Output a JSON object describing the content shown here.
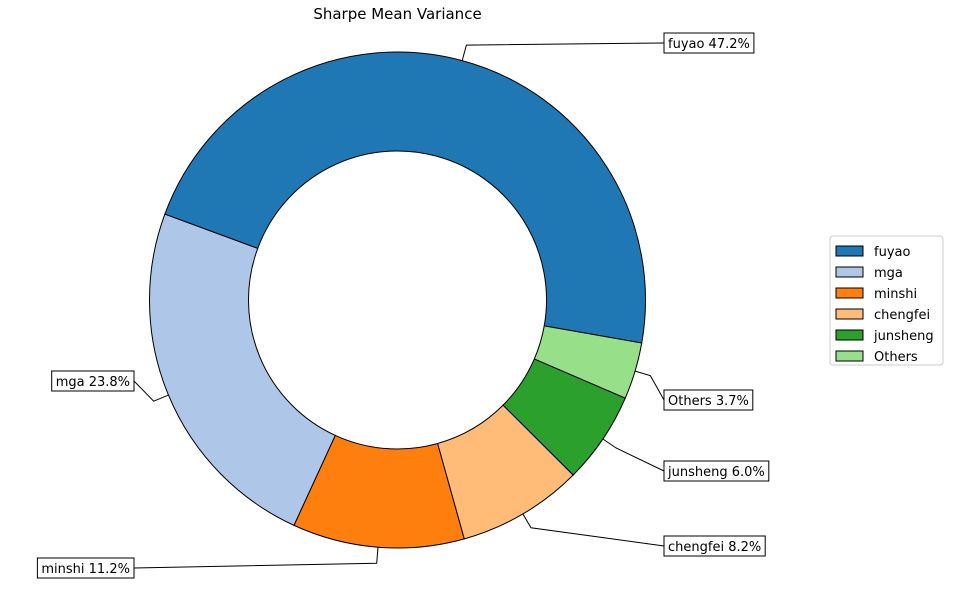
{
  "chart_data": {
    "type": "pie",
    "title": "Sharpe Mean Variance",
    "donut": true,
    "slices": [
      {
        "label": "fuyao",
        "value": 47.2,
        "display": "fuyao 47.2%",
        "color": "#1f77b4"
      },
      {
        "label": "mga",
        "value": 23.8,
        "display": "mga 23.8%",
        "color": "#aec7e8"
      },
      {
        "label": "minshi",
        "value": 11.2,
        "display": "minshi 11.2%",
        "color": "#ff7f0e"
      },
      {
        "label": "chengfei",
        "value": 8.2,
        "display": "chengfei 8.2%",
        "color": "#ffbb78"
      },
      {
        "label": "junsheng",
        "value": 6.0,
        "display": "junsheng 6.0%",
        "color": "#2ca02c"
      },
      {
        "label": "Others",
        "value": 3.7,
        "display": "Others 3.7%",
        "color": "#98df8a"
      }
    ],
    "legend": {
      "placement": "right",
      "entries": [
        "fuyao",
        "mga",
        "minshi",
        "chengfei",
        "junsheng",
        "Others"
      ]
    },
    "start_angle_deg": -10,
    "direction": "counterclockwise"
  }
}
